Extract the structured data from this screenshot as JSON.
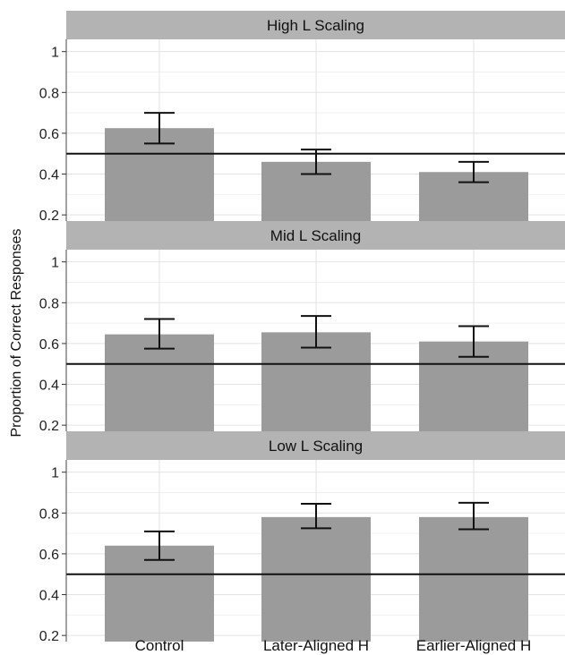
{
  "chart_data": {
    "type": "bar",
    "ylabel": "Proportion of Correct Responses",
    "xlabel": "",
    "categories": [
      "Control",
      "Later-Aligned H",
      "Earlier-Aligned H"
    ],
    "ylim": [
      0.17,
      1.06
    ],
    "yticks": [
      0.2,
      0.4,
      0.6,
      0.8,
      1
    ],
    "ytick_labels": [
      "0.2",
      "0.4",
      "0.6",
      "0.8",
      "1"
    ],
    "reference_line": 0.5,
    "grid": true,
    "panels": [
      {
        "title": "High L Scaling",
        "values": [
          0.625,
          0.46,
          0.41
        ],
        "error_low": [
          0.55,
          0.4,
          0.36
        ],
        "error_high": [
          0.7,
          0.52,
          0.46
        ]
      },
      {
        "title": "Mid L Scaling",
        "values": [
          0.645,
          0.655,
          0.61
        ],
        "error_low": [
          0.575,
          0.58,
          0.535
        ],
        "error_high": [
          0.72,
          0.735,
          0.685
        ]
      },
      {
        "title": "Low L Scaling",
        "values": [
          0.64,
          0.78,
          0.78
        ],
        "error_low": [
          0.57,
          0.725,
          0.72
        ],
        "error_high": [
          0.71,
          0.845,
          0.85
        ]
      }
    ]
  }
}
